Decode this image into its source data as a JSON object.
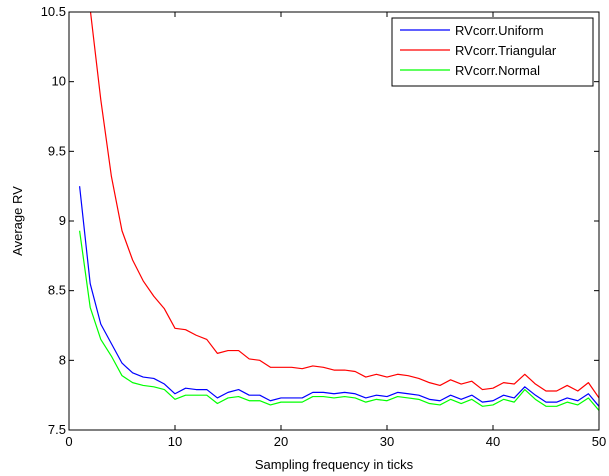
{
  "chart_data": {
    "type": "line",
    "title": "",
    "xlabel": "Sampling frequency in ticks",
    "ylabel": "Average RV",
    "xlim": [
      0,
      50
    ],
    "ylim": [
      7.5,
      10.5
    ],
    "xticks": [
      0,
      10,
      20,
      30,
      40,
      50
    ],
    "yticks": [
      7.5,
      8,
      8.5,
      9,
      9.5,
      10,
      10.5
    ],
    "xtick_labels": [
      "0",
      "10",
      "20",
      "30",
      "40",
      "50"
    ],
    "ytick_labels": [
      "7.5",
      "8",
      "8.5",
      "9",
      "9.5",
      "10",
      "10.5"
    ],
    "grid": false,
    "legend_position": "top-right",
    "x": [
      1,
      2,
      3,
      4,
      5,
      6,
      7,
      8,
      9,
      10,
      11,
      12,
      13,
      14,
      15,
      16,
      17,
      18,
      19,
      20,
      21,
      22,
      23,
      24,
      25,
      26,
      27,
      28,
      29,
      30,
      31,
      32,
      33,
      34,
      35,
      36,
      37,
      38,
      39,
      40,
      41,
      42,
      43,
      44,
      45,
      46,
      47,
      48,
      49,
      50
    ],
    "series": [
      {
        "name": "RVcorr.Uniform",
        "color": "#0000ff",
        "values": [
          9.25,
          8.55,
          8.26,
          8.12,
          7.98,
          7.91,
          7.88,
          7.87,
          7.83,
          7.76,
          7.8,
          7.79,
          7.79,
          7.73,
          7.77,
          7.79,
          7.75,
          7.75,
          7.71,
          7.73,
          7.73,
          7.73,
          7.77,
          7.77,
          7.76,
          7.77,
          7.76,
          7.73,
          7.75,
          7.74,
          7.77,
          7.76,
          7.75,
          7.72,
          7.71,
          7.75,
          7.72,
          7.75,
          7.7,
          7.71,
          7.75,
          7.73,
          7.81,
          7.75,
          7.7,
          7.7,
          7.73,
          7.71,
          7.76,
          7.67
        ]
      },
      {
        "name": "RVcorr.Triangular",
        "color": "#ff0000",
        "values": [
          10.72,
          10.52,
          9.87,
          9.32,
          8.93,
          8.72,
          8.57,
          8.46,
          8.37,
          8.23,
          8.22,
          8.18,
          8.15,
          8.05,
          8.07,
          8.07,
          8.01,
          8.0,
          7.95,
          7.95,
          7.95,
          7.94,
          7.96,
          7.95,
          7.93,
          7.93,
          7.92,
          7.88,
          7.9,
          7.88,
          7.9,
          7.89,
          7.87,
          7.84,
          7.82,
          7.86,
          7.83,
          7.85,
          7.79,
          7.8,
          7.84,
          7.83,
          7.9,
          7.83,
          7.78,
          7.78,
          7.82,
          7.78,
          7.84,
          7.73
        ]
      },
      {
        "name": "RVcorr.Normal",
        "color": "#00ff00",
        "values": [
          8.93,
          8.38,
          8.15,
          8.03,
          7.89,
          7.84,
          7.82,
          7.81,
          7.79,
          7.72,
          7.75,
          7.75,
          7.75,
          7.69,
          7.73,
          7.74,
          7.71,
          7.71,
          7.68,
          7.7,
          7.7,
          7.7,
          7.74,
          7.74,
          7.73,
          7.74,
          7.73,
          7.7,
          7.72,
          7.71,
          7.74,
          7.73,
          7.72,
          7.69,
          7.68,
          7.72,
          7.69,
          7.72,
          7.67,
          7.68,
          7.72,
          7.7,
          7.79,
          7.72,
          7.67,
          7.67,
          7.7,
          7.68,
          7.73,
          7.64
        ]
      }
    ]
  }
}
